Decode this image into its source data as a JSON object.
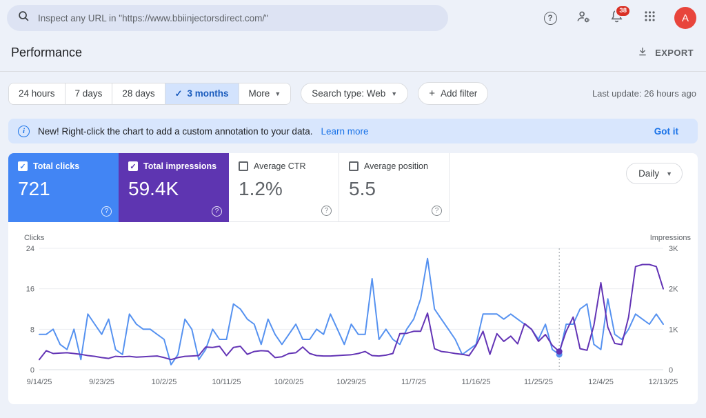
{
  "topbar": {
    "search_placeholder": "Inspect any URL in \"https://www.bbiinjectorsdirect.com/\"",
    "notification_count": "38",
    "avatar_letter": "A"
  },
  "header": {
    "title": "Performance",
    "export_label": "EXPORT"
  },
  "filters": {
    "date_ranges": [
      {
        "label": "24 hours",
        "selected": false
      },
      {
        "label": "7 days",
        "selected": false
      },
      {
        "label": "28 days",
        "selected": false
      },
      {
        "label": "3 months",
        "selected": true
      },
      {
        "label": "More",
        "selected": false
      }
    ],
    "search_type_label": "Search type: Web",
    "add_filter_label": "Add filter",
    "last_update": "Last update: 26 hours ago"
  },
  "banner": {
    "text": "New! Right-click the chart to add a custom annotation to your data.",
    "link_label": "Learn more",
    "dismiss_label": "Got it"
  },
  "metrics": {
    "cards": [
      {
        "label": "Total clicks",
        "value": "721",
        "checked": true,
        "bg": "#4285f4"
      },
      {
        "label": "Total impressions",
        "value": "59.4K",
        "checked": true,
        "bg": "#5e35b1"
      },
      {
        "label": "Average CTR",
        "value": "1.2%",
        "checked": false,
        "bg": "#ffffff"
      },
      {
        "label": "Average position",
        "value": "5.5",
        "checked": false,
        "bg": "#ffffff"
      }
    ],
    "granularity_label": "Daily"
  },
  "chart_data": {
    "type": "line",
    "title": "Performance over time",
    "frequency": "daily",
    "start_date": "9/14/25",
    "end_date": "12/13/25",
    "x_tick_labels": [
      "9/14/25",
      "9/23/25",
      "10/2/25",
      "10/11/25",
      "10/20/25",
      "10/29/25",
      "11/7/25",
      "11/16/25",
      "11/25/25",
      "12/4/25",
      "12/13/25"
    ],
    "left_axis": {
      "label": "Clicks",
      "max": 24,
      "ticks": [
        "24",
        "16",
        "8",
        "0"
      ]
    },
    "right_axis": {
      "label": "Impressions",
      "max": 3000,
      "ticks": [
        "3K",
        "2K",
        "1K",
        "0"
      ]
    },
    "grid": true,
    "annotation": {
      "index": 75,
      "date": "11/28/25"
    },
    "series": [
      {
        "name": "Clicks",
        "axis": "left",
        "color": "#5692f0",
        "values": [
          7,
          7,
          8,
          5,
          4,
          8,
          2,
          11,
          9,
          7,
          10,
          4,
          3,
          11,
          9,
          8,
          8,
          7,
          6,
          1,
          3,
          10,
          8,
          2,
          4,
          8,
          6,
          6,
          13,
          12,
          10,
          9,
          5,
          10,
          7,
          5,
          7,
          9,
          6,
          6,
          8,
          7,
          11,
          8,
          5,
          9,
          7,
          7,
          18,
          6,
          8,
          6,
          5,
          8,
          10,
          14,
          22,
          12,
          10,
          8,
          6,
          3,
          4,
          5,
          11,
          11,
          11,
          10,
          11,
          10,
          9,
          8,
          6,
          9,
          4,
          3,
          9,
          9,
          12,
          13,
          5,
          4,
          14,
          7,
          6,
          8,
          11,
          10,
          9,
          11,
          9
        ]
      },
      {
        "name": "Impressions",
        "axis": "right",
        "color": "#6334b5",
        "values": [
          250,
          470,
          400,
          410,
          420,
          400,
          380,
          350,
          330,
          300,
          280,
          330,
          320,
          330,
          310,
          320,
          330,
          340,
          300,
          250,
          300,
          330,
          340,
          350,
          560,
          550,
          580,
          350,
          550,
          580,
          380,
          450,
          470,
          460,
          300,
          320,
          400,
          420,
          560,
          400,
          350,
          340,
          340,
          350,
          360,
          370,
          400,
          450,
          350,
          340,
          360,
          400,
          890,
          900,
          950,
          950,
          1400,
          520,
          450,
          430,
          400,
          380,
          350,
          600,
          950,
          380,
          890,
          700,
          830,
          640,
          1140,
          1000,
          700,
          870,
          600,
          450,
          950,
          1300,
          520,
          480,
          1100,
          2150,
          1050,
          650,
          620,
          1300,
          2550,
          2600,
          2600,
          2550,
          2000
        ]
      }
    ]
  }
}
